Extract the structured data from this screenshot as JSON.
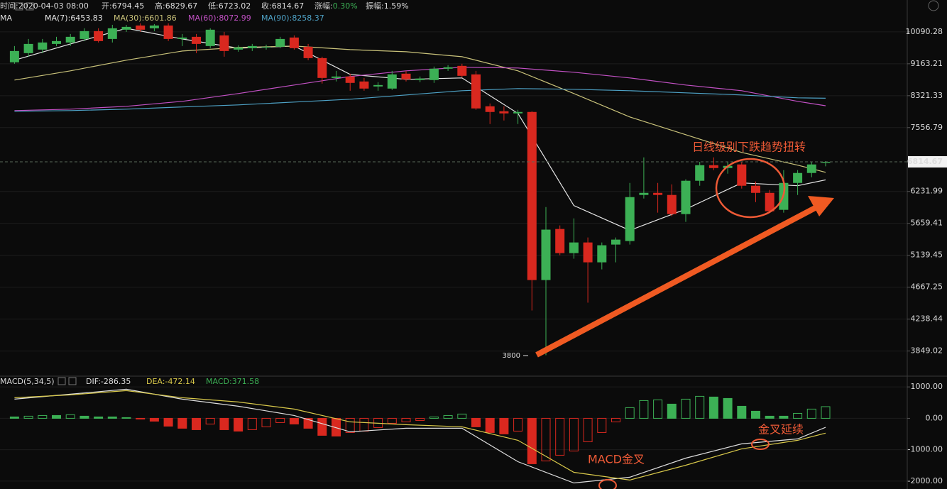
{
  "chart_data": [
    {
      "type": "candlestick",
      "info": [
        {
          "label": "时间:",
          "value": "2020-04-03 08:00"
        },
        {
          "label": "开:",
          "value": 6794.45
        },
        {
          "label": "高:",
          "value": 6829.67
        },
        {
          "label": "低:",
          "value": 6723.02
        },
        {
          "label": "收:",
          "value": 6814.67
        },
        {
          "label": "涨幅:",
          "value": 0.3,
          "value_label": "0.30%",
          "color": "#3cb055"
        },
        {
          "label": "振幅:",
          "value": 1.59,
          "value_label": "1.59%"
        }
      ],
      "legend_title": "MA",
      "up_color": "#3cb055",
      "down_color": "#d9281f",
      "open": [
        9203,
        9462,
        9564,
        9729,
        9771,
        9876,
        10112,
        9876,
        10156,
        10285,
        10199,
        10285,
        9876,
        9940,
        9667,
        9983,
        9564,
        9605,
        9626,
        9646,
        9919,
        9646,
        9321,
        8779,
        8817,
        8686,
        8556,
        8502,
        8893,
        8723,
        8723,
        9028,
        9105,
        8874,
        8059,
        7939,
        7888,
        7922,
        4769,
        5564,
        5173,
        5342,
        5031,
        5308,
        5365,
        6166,
        6205,
        6166,
        5820,
        6436,
        6746,
        6688,
        6761,
        6340,
        6205,
        5895,
        6394,
        6589,
        6794.45
      ],
      "high": [
        9667,
        9876,
        9876,
        9940,
        10026,
        10199,
        10199,
        10307,
        10307,
        10352,
        10330,
        10352,
        10026,
        10026,
        10199,
        10090,
        9688,
        9729,
        9708,
        9940,
        9983,
        9729,
        9361,
        8969,
        8893,
        8779,
        8668,
        8969,
        8969,
        8817,
        9086,
        9125,
        9163,
        8969,
        8128,
        8059,
        7973,
        7939,
        5945,
        5624,
        5745,
        5423,
        5342,
        5423,
        6394,
        6907,
        6394,
        6367,
        6464,
        6815,
        6907,
        6815,
        6815,
        6422,
        6259,
        6646,
        6646,
        6815,
        6829.67
      ],
      "low": [
        9163,
        9361,
        9462,
        9667,
        9667,
        9813,
        9771,
        9771,
        10090,
        10090,
        10112,
        9813,
        9667,
        9462,
        9605,
        9361,
        9503,
        9523,
        9564,
        9605,
        9564,
        9262,
        8631,
        8686,
        8447,
        8447,
        8447,
        8466,
        8686,
        8668,
        8649,
        8969,
        8798,
        7973,
        7639,
        7721,
        7639,
        4350,
        3800,
        5140,
        5086,
        4454,
        4925,
        5031,
        5308,
        6100,
        5845,
        5782,
        5684,
        6340,
        6646,
        6575,
        6286,
        6035,
        5845,
        5845,
        6166,
        6505,
        6723.02
      ],
      "close": [
        9523,
        9729,
        9771,
        9813,
        9940,
        10112,
        9813,
        10199,
        10243,
        10156,
        10285,
        9876,
        9919,
        9729,
        10156,
        9523,
        9626,
        9667,
        9646,
        9876,
        9605,
        9321,
        8779,
        8817,
        8649,
        8502,
        8593,
        8874,
        8742,
        8761,
        9028,
        9066,
        8836,
        8007,
        7922,
        7888,
        7922,
        4769,
        5553,
        5173,
        5342,
        5031,
        5297,
        5388,
        6126,
        6205,
        6166,
        5820,
        6436,
        6746,
        6688,
        6732,
        6340,
        6205,
        5870,
        6394,
        6589,
        6761,
        6814.67
      ],
      "series": [
        {
          "name": "MA(7):",
          "color": "#e6e6e6",
          "x": [
            0,
            4,
            8,
            12,
            16,
            20,
            24,
            28,
            32,
            36,
            40,
            44,
            48,
            52,
            56,
            58
          ],
          "values": [
            9262,
            9729,
            10199,
            9876,
            9605,
            9667,
            8874,
            8742,
            8779,
            7888,
            5971,
            5540,
            5907,
            6394,
            6340,
            6453.83
          ]
        },
        {
          "name": "MA(30):",
          "color": "#c9c27a",
          "x": [
            0,
            4,
            8,
            12,
            16,
            20,
            24,
            28,
            32,
            36,
            40,
            44,
            48,
            52,
            56,
            58
          ],
          "values": [
            8723,
            8969,
            9262,
            9523,
            9626,
            9667,
            9564,
            9503,
            9361,
            8969,
            8375,
            7804,
            7397,
            7011,
            6746,
            6601.86
          ]
        },
        {
          "name": "MA(60):",
          "color": "#c251c4",
          "x": [
            0,
            4,
            8,
            12,
            16,
            20,
            24,
            28,
            32,
            36,
            40,
            44,
            48,
            52,
            56,
            58
          ],
          "values": [
            7956,
            7990,
            8059,
            8180,
            8375,
            8593,
            8817,
            8969,
            9066,
            9047,
            8931,
            8779,
            8593,
            8447,
            8180,
            8072.99
          ]
        },
        {
          "name": "MA(90):",
          "color": "#4ea2c6",
          "x": [
            0,
            4,
            8,
            12,
            16,
            20,
            24,
            28,
            32,
            36,
            40,
            44,
            48,
            52,
            56,
            58
          ],
          "values": [
            7939,
            7956,
            7990,
            8042,
            8093,
            8163,
            8233,
            8340,
            8447,
            8502,
            8484,
            8447,
            8393,
            8340,
            8268,
            8258.37
          ]
        }
      ],
      "ylim": [
        3560,
        10850
      ],
      "log_scale": true,
      "yticks": [
        10090.28,
        9163.21,
        8321.33,
        7556.79,
        6231.99,
        5659.41,
        5139.45,
        4667.25,
        4238.44,
        3849.02
      ],
      "grid": true,
      "annotations": [
        "日线级别下跌趋势扭转"
      ]
    },
    {
      "type": "macd",
      "title": "MACD(5,34,5)",
      "histogram": {
        "name": "MACD:",
        "up_color": "#3cb055",
        "down_color": "#d9281f",
        "values": [
          45,
          68,
          90,
          90,
          113,
          68,
          45,
          45,
          23,
          -23,
          -90,
          -249,
          -316,
          -362,
          -181,
          -362,
          -407,
          -362,
          -271,
          -136,
          -181,
          -316,
          -542,
          -565,
          -452,
          -407,
          -294,
          -158,
          -113,
          -68,
          45,
          90,
          136,
          -271,
          -452,
          -497,
          -407,
          -1446,
          -1356,
          -1175,
          -1040,
          -746,
          -452,
          -113,
          339,
          565,
          588,
          452,
          610,
          701,
          678,
          633,
          384,
          226,
          68,
          68,
          158,
          294,
          371.58
        ]
      },
      "series": [
        {
          "name": "DIF:",
          "color": "#dddddd",
          "x": [
            0,
            4,
            8,
            12,
            16,
            20,
            24,
            28,
            32,
            36,
            40,
            44,
            48,
            52,
            56,
            58
          ],
          "values": [
            610,
            768,
            927,
            610,
            384,
            90,
            -429,
            -316,
            -316,
            -1379,
            -2057,
            -1876,
            -1266,
            -814,
            -655,
            -286.35
          ]
        },
        {
          "name": "DEA:",
          "color": "#d8c84a",
          "x": [
            0,
            4,
            8,
            12,
            16,
            20,
            24,
            28,
            32,
            36,
            40,
            44,
            48,
            52,
            56,
            58
          ],
          "values": [
            655,
            746,
            881,
            655,
            520,
            294,
            -113,
            -203,
            -271,
            -701,
            -1718,
            -1966,
            -1492,
            -972,
            -701,
            -472.14
          ]
        }
      ],
      "ylim": [
        -2250,
        1320
      ],
      "yticks": [
        {
          "value": 1000,
          "label": "1000.00"
        },
        {
          "value": 0,
          "label": "0.00"
        },
        {
          "value": -1000,
          "label": "-1000.00"
        },
        {
          "value": -2000,
          "label": "-2000.00"
        }
      ],
      "grid": true,
      "annotations": [
        "MACD金叉",
        "金叉延续"
      ]
    }
  ]
}
